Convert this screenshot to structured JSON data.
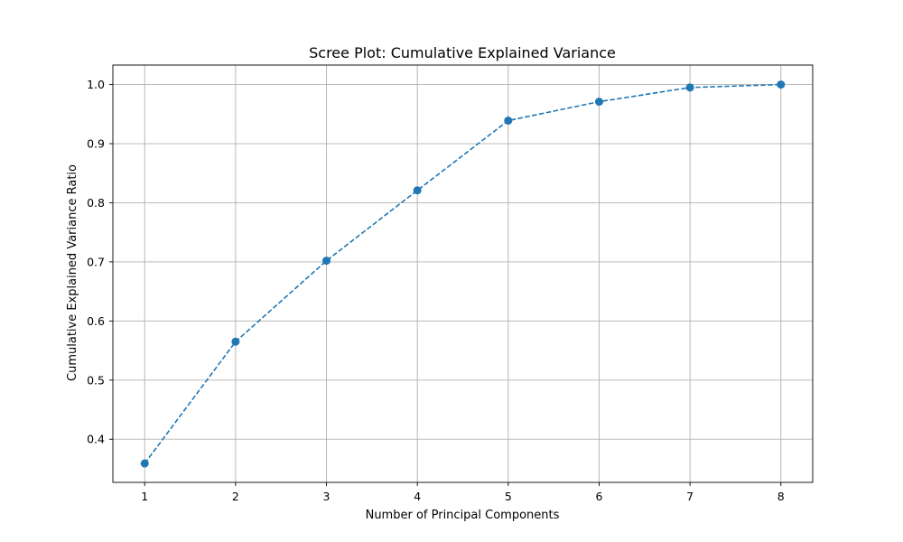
{
  "chart_data": {
    "type": "line",
    "title": "Scree Plot: Cumulative Explained Variance",
    "xlabel": "Number of Principal Components",
    "ylabel": "Cumulative Explained Variance Ratio",
    "x": [
      1,
      2,
      3,
      4,
      5,
      6,
      7,
      8
    ],
    "series": [
      {
        "values": [
          0.359,
          0.565,
          0.702,
          0.821,
          0.939,
          0.971,
          0.995,
          1.0
        ],
        "color": "#1f77b4",
        "line_style": "dashed",
        "marker": "circle"
      }
    ],
    "xlim": [
      0.65,
      8.35
    ],
    "ylim": [
      0.327,
      1.033
    ],
    "x_ticks": [
      1,
      2,
      3,
      4,
      5,
      6,
      7,
      8
    ],
    "y_ticks": [
      0.4,
      0.5,
      0.6,
      0.7,
      0.8,
      0.9,
      1.0
    ],
    "x_tick_labels": [
      "1",
      "2",
      "3",
      "4",
      "5",
      "6",
      "7",
      "8"
    ],
    "y_tick_labels": [
      "0.4",
      "0.5",
      "0.6",
      "0.7",
      "0.8",
      "0.9",
      "1.0"
    ],
    "grid": true
  }
}
